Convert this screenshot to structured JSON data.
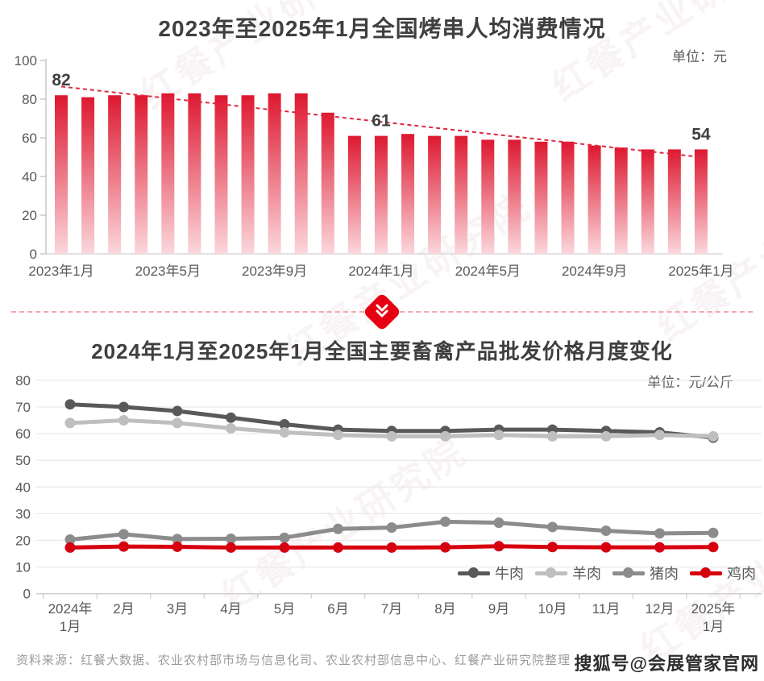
{
  "brand": {
    "watermark_text": "红餐产业研究院"
  },
  "overlay": {
    "sohu_watermark": "搜狐号@会展管家官网"
  },
  "footer": {
    "source": "资料来源：红餐大数据、农业农村部市场与信息化司、农业农村部信息中心、红餐产业研究院整理"
  },
  "chart_data": [
    {
      "type": "bar",
      "title": "2023年至2025年1月全国烤串人均消费情况",
      "unit": "单位：元",
      "categories": [
        "2023年1月",
        "2023年2月",
        "2023年3月",
        "2023年4月",
        "2023年5月",
        "2023年6月",
        "2023年7月",
        "2023年8月",
        "2023年9月",
        "2023年10月",
        "2023年11月",
        "2023年12月",
        "2024年1月",
        "2024年2月",
        "2024年3月",
        "2024年4月",
        "2024年5月",
        "2024年6月",
        "2024年7月",
        "2024年8月",
        "2024年9月",
        "2024年10月",
        "2024年11月",
        "2024年12月",
        "2025年1月"
      ],
      "values": [
        82,
        81,
        82,
        82,
        83,
        83,
        82,
        82,
        83,
        83,
        73,
        61,
        61,
        62,
        61,
        61,
        59,
        59,
        58,
        58,
        56,
        55,
        54,
        54,
        54
      ],
      "labeled_points": [
        {
          "index": 0,
          "label": "82"
        },
        {
          "index": 12,
          "label": "61"
        },
        {
          "index": 24,
          "label": "54"
        }
      ],
      "x_tick_labels": [
        "2023年1月",
        "2023年5月",
        "2023年9月",
        "2024年1月",
        "2024年5月",
        "2024年9月",
        "2025年1月"
      ],
      "x_tick_indices": [
        0,
        4,
        8,
        12,
        16,
        20,
        24
      ],
      "y_ticks": [
        0,
        20,
        40,
        60,
        80,
        100
      ],
      "ylim": [
        0,
        100
      ],
      "grid": false,
      "bar_color_top": "#dd1830",
      "bar_color_bottom": "#fbd7dc",
      "trendline": {
        "start_value": 86.5,
        "end_value": 50,
        "style": "dashed",
        "color": "#e02840"
      }
    },
    {
      "type": "line",
      "title": "2024年1月至2025年1月全国主要畜禽产品批发价格月度变化",
      "unit": "单位：元/公斤",
      "categories": [
        "2024年1月",
        "2月",
        "3月",
        "4月",
        "5月",
        "6月",
        "7月",
        "8月",
        "9月",
        "10月",
        "11月",
        "12月",
        "2025年1月"
      ],
      "tick_lines": [
        [
          "2024年",
          "1月"
        ],
        [
          "2月"
        ],
        [
          "3月"
        ],
        [
          "4月"
        ],
        [
          "5月"
        ],
        [
          "6月"
        ],
        [
          "7月"
        ],
        [
          "8月"
        ],
        [
          "9月"
        ],
        [
          "10月"
        ],
        [
          "11月"
        ],
        [
          "12月"
        ],
        [
          "2025年",
          "1月"
        ]
      ],
      "series": [
        {
          "name": "牛肉",
          "color": "#595959",
          "values": [
            71,
            70,
            68.5,
            66,
            63.5,
            61.5,
            61,
            61,
            61.5,
            61.5,
            61,
            60.5,
            58.5
          ]
        },
        {
          "name": "羊肉",
          "color": "#bfbfbf",
          "values": [
            64,
            65,
            64,
            62,
            60.5,
            59.5,
            59,
            59,
            59.5,
            59,
            59,
            59.5,
            59
          ]
        },
        {
          "name": "猪肉",
          "color": "#8c8c8c",
          "values": [
            20.3,
            22.3,
            20.5,
            20.6,
            21,
            24.3,
            24.8,
            27,
            26.6,
            25,
            23.6,
            22.6,
            22.8
          ]
        },
        {
          "name": "鸡肉",
          "color": "#d6000f",
          "values": [
            17.3,
            17.7,
            17.6,
            17.3,
            17.3,
            17.3,
            17.3,
            17.4,
            17.8,
            17.5,
            17.4,
            17.4,
            17.5
          ]
        }
      ],
      "y_ticks": [
        0,
        10,
        20,
        30,
        40,
        50,
        60,
        70,
        80
      ],
      "ylim": [
        0,
        80
      ],
      "grid": true,
      "legend_position": "bottom-right"
    }
  ]
}
